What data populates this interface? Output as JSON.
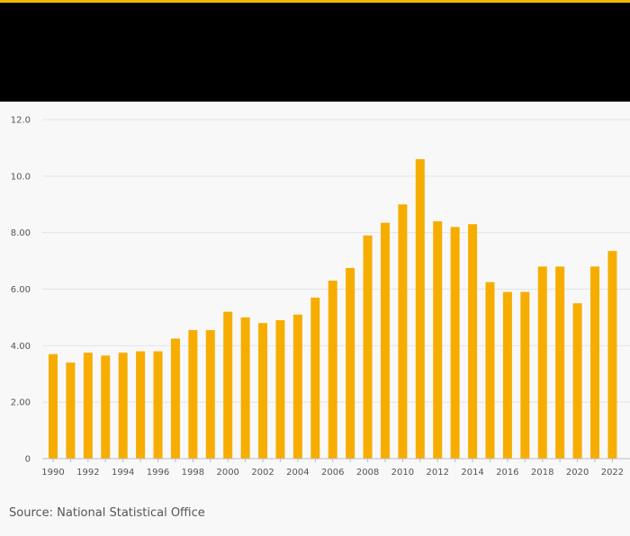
{
  "colors": {
    "accent": "#f5b800",
    "header_band": "#000000",
    "bar": "#f7ad00",
    "grid": "#e3e3e3",
    "axis_text": "#555555"
  },
  "chart_data": {
    "type": "bar",
    "title": "",
    "xlabel": "",
    "ylabel": "",
    "ylim": [
      0,
      12
    ],
    "y_ticks": [
      {
        "value": 0,
        "label": "0"
      },
      {
        "value": 2,
        "label": "2.00"
      },
      {
        "value": 4,
        "label": "4.00"
      },
      {
        "value": 6,
        "label": "6.00"
      },
      {
        "value": 8,
        "label": "8.00"
      },
      {
        "value": 10,
        "label": "10.0"
      },
      {
        "value": 12,
        "label": "12.0"
      }
    ],
    "categories": [
      "1990",
      "1991",
      "1992",
      "1993",
      "1994",
      "1995",
      "1996",
      "1997",
      "1998",
      "1999",
      "2000",
      "2001",
      "2002",
      "2003",
      "2004",
      "2005",
      "2006",
      "2007",
      "2008",
      "2009",
      "2010",
      "2011",
      "2012",
      "2013",
      "2014",
      "2015",
      "2016",
      "2017",
      "2018",
      "2019",
      "2020",
      "2021",
      "2022"
    ],
    "x_tick_labels": [
      "1990",
      "1992",
      "1994",
      "1996",
      "1998",
      "2000",
      "2002",
      "2004",
      "2006",
      "2008",
      "2010",
      "2012",
      "2014",
      "2016",
      "2018",
      "2020",
      "2022"
    ],
    "values": [
      3.7,
      3.4,
      3.75,
      3.65,
      3.75,
      3.8,
      3.8,
      4.25,
      4.55,
      4.55,
      5.2,
      5.0,
      4.8,
      4.9,
      5.1,
      5.7,
      6.3,
      6.75,
      7.9,
      8.35,
      9.0,
      10.6,
      8.4,
      8.2,
      8.3,
      6.25,
      5.9,
      5.9,
      6.8,
      6.8,
      5.5,
      6.8,
      7.35
    ],
    "grid": true,
    "legend": null
  },
  "source": "Source: National Statistical Office"
}
